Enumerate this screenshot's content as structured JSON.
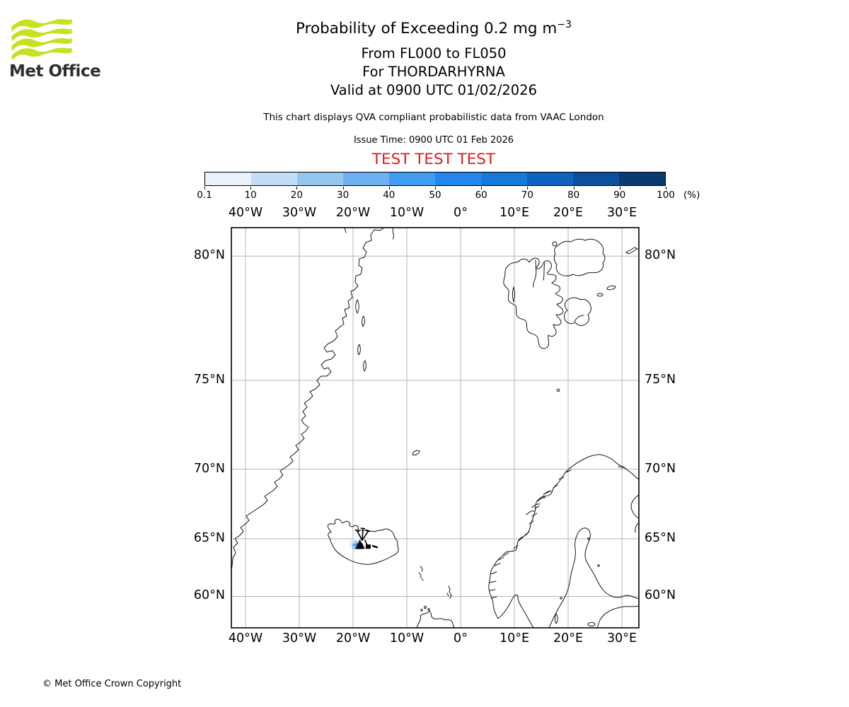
{
  "logo": {
    "brand": "Met Office",
    "wave_color": "#c7e01f"
  },
  "header": {
    "title_main": "Probability of Exceeding 0.2 mg m",
    "title_sup": "−3",
    "subtitle1": "From FL000 to FL050",
    "subtitle2": "For THORDARHYRNA",
    "subtitle3": "Valid at 0900 UTC 01/02/2026",
    "note": "This chart displays QVA compliant probabilistic data from VAAC London",
    "issue_time": "Issue Time: 0900 UTC 01 Feb 2026",
    "test_banner": "TEST TEST TEST",
    "test_color": "#dd1e1e"
  },
  "legend": {
    "tick_labels": [
      "0.1",
      "10",
      "20",
      "30",
      "40",
      "50",
      "60",
      "70",
      "80",
      "90",
      "100"
    ],
    "unit": "(%)",
    "colors": [
      "#e9f2fb",
      "#c3ddf6",
      "#94c6f0",
      "#6db1f2",
      "#409bf2",
      "#2387ee",
      "#137ad9",
      "#0f63be",
      "#0c4f9f",
      "#0a3a72"
    ]
  },
  "footer": {
    "copyright": "© Met Office Crown Copyright"
  },
  "chart_data": {
    "type": "heatmap",
    "projection": "mercator",
    "title": "Probability of Exceeding 0.2 mg m−3",
    "flight_levels": "FL000 to FL050",
    "volcano_name": "THORDARHYRNA",
    "valid_time": "0900 UTC 01/02/2026",
    "issue_time": "0900 UTC 01 Feb 2026",
    "source": "VAAC London",
    "threshold": "0.2 mg m−3",
    "unit": "%",
    "percent_bins": [
      0.1,
      10,
      20,
      30,
      40,
      50,
      60,
      70,
      80,
      90,
      100
    ],
    "bin_colors": [
      "#e9f2fb",
      "#c3ddf6",
      "#94c6f0",
      "#6db1f2",
      "#409bf2",
      "#2387ee",
      "#137ad9",
      "#0f63be",
      "#0c4f9f",
      "#0a3a72"
    ],
    "grid_on": true,
    "grid_color": "#b5b5b5",
    "coast_color": "#141414",
    "lon_grid": [
      -40,
      -30,
      -20,
      -10,
      0,
      10,
      20,
      30
    ],
    "lon_grid_labels": [
      "40°W",
      "30°W",
      "20°W",
      "10°W",
      "0°",
      "10°E",
      "20°E",
      "30°E"
    ],
    "lat_grid": [
      80,
      75,
      70,
      65,
      60
    ],
    "lat_grid_labels": [
      "80°N",
      "75°N",
      "70°N",
      "65°N",
      "60°N"
    ],
    "lon_extent": [
      -42.6,
      33.2
    ],
    "lat_extent": [
      57.9,
      81.0
    ],
    "volcano_marker": {
      "lon": -18.3,
      "lat": 64.42
    },
    "cells": [
      {
        "lon": -19.6,
        "lat": 64.93,
        "bin": 0
      },
      {
        "lon": -19.1,
        "lat": 64.93,
        "bin": 0
      },
      {
        "lon": -20.4,
        "lat": 64.82,
        "bin": 0
      },
      {
        "lon": -20.4,
        "lat": 64.6,
        "bin": 0
      },
      {
        "lon": -20.4,
        "lat": 64.38,
        "bin": 0
      },
      {
        "lon": -19.9,
        "lat": 64.72,
        "bin": 1
      },
      {
        "lon": -19.4,
        "lat": 64.72,
        "bin": 2
      },
      {
        "lon": -19.9,
        "lat": 64.5,
        "bin": 3
      },
      {
        "lon": -19.4,
        "lat": 64.5,
        "bin": 4
      },
      {
        "lon": -18.9,
        "lat": 64.5,
        "bin": 6
      },
      {
        "lon": -18.4,
        "lat": 64.5,
        "bin": 5
      },
      {
        "lon": -19.9,
        "lat": 64.28,
        "bin": 2
      },
      {
        "lon": -19.4,
        "lat": 64.28,
        "bin": 3
      },
      {
        "lon": -18.9,
        "lat": 64.28,
        "bin": 6
      },
      {
        "lon": -18.4,
        "lat": 64.28,
        "bin": 4
      }
    ]
  }
}
